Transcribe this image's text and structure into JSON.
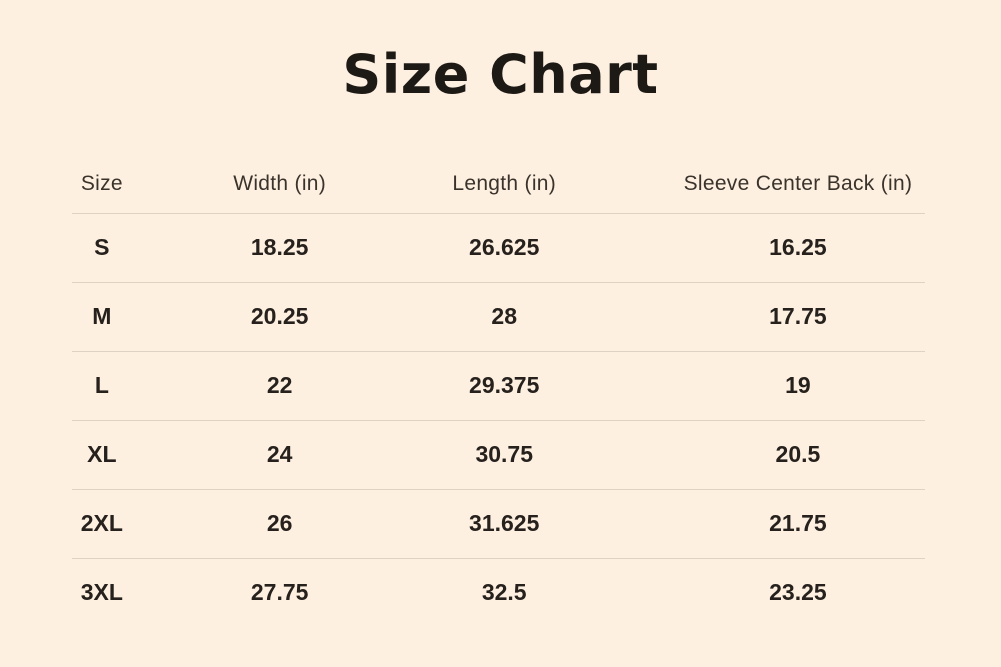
{
  "title": "Size Chart",
  "table": {
    "headers": [
      "Size",
      "Width (in)",
      "Length (in)",
      "Sleeve Center Back (in)"
    ],
    "rows": [
      [
        "S",
        "18.25",
        "26.625",
        "16.25"
      ],
      [
        "M",
        "20.25",
        "28",
        "17.75"
      ],
      [
        "L",
        "22",
        "29.375",
        "19"
      ],
      [
        "XL",
        "24",
        "30.75",
        "20.5"
      ],
      [
        "2XL",
        "26",
        "31.625",
        "21.75"
      ],
      [
        "3XL",
        "27.75",
        "32.5",
        "23.25"
      ]
    ]
  },
  "colors": {
    "background": "#fdf0e0",
    "title_text": "#1d1915",
    "header_text": "#3a332c",
    "data_text": "#26211d",
    "divider": "#ddd2c4"
  },
  "chart_data": {
    "type": "table",
    "title": "Size Chart",
    "columns": [
      "Size",
      "Width (in)",
      "Length (in)",
      "Sleeve Center Back (in)"
    ],
    "rows": [
      {
        "size": "S",
        "width_in": 18.25,
        "length_in": 26.625,
        "sleeve_center_back_in": 16.25
      },
      {
        "size": "M",
        "width_in": 20.25,
        "length_in": 28,
        "sleeve_center_back_in": 17.75
      },
      {
        "size": "L",
        "width_in": 22,
        "length_in": 29.375,
        "sleeve_center_back_in": 19
      },
      {
        "size": "XL",
        "width_in": 24,
        "length_in": 30.75,
        "sleeve_center_back_in": 20.5
      },
      {
        "size": "2XL",
        "width_in": 26,
        "length_in": 31.625,
        "sleeve_center_back_in": 21.75
      },
      {
        "size": "3XL",
        "width_in": 27.75,
        "length_in": 32.5,
        "sleeve_center_back_in": 23.25
      }
    ]
  }
}
